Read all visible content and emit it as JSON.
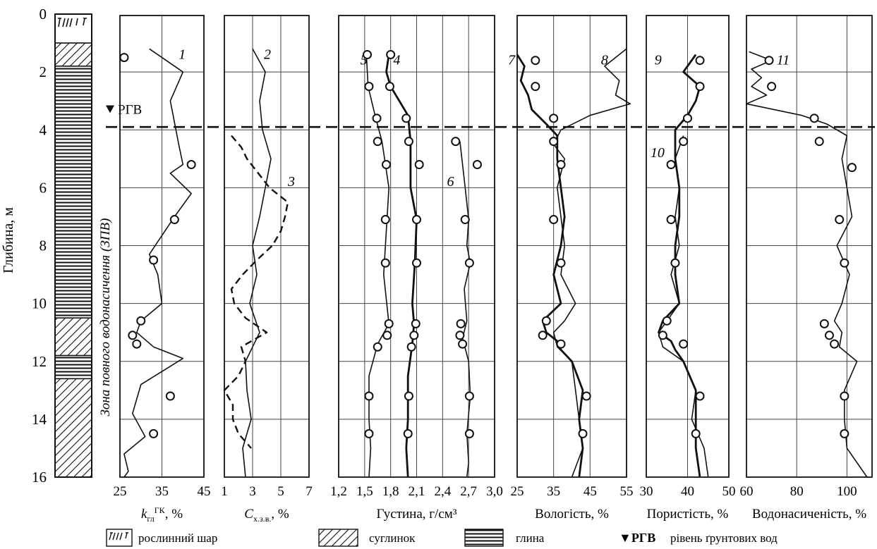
{
  "chart_data": {
    "type": "line",
    "y_axis": {
      "label": "Глибина, м",
      "ticks": [
        "0",
        "2",
        "4",
        "6",
        "8",
        "10",
        "12",
        "14",
        "16"
      ],
      "range": [
        0,
        16
      ]
    },
    "water_table": {
      "label": "РГВ",
      "depth": 3.9,
      "zone_label": "Зона повного водонасичення (ЗПВ)"
    },
    "lithology": [
      {
        "from": 0,
        "to": 1,
        "type": "soil"
      },
      {
        "from": 1,
        "to": 1.8,
        "type": "loam"
      },
      {
        "from": 1.8,
        "to": 10.5,
        "type": "clay"
      },
      {
        "from": 10.5,
        "to": 11.8,
        "type": "loam"
      },
      {
        "from": 11.8,
        "to": 12.6,
        "type": "clay"
      },
      {
        "from": 12.6,
        "to": 16,
        "type": "loam"
      }
    ],
    "panels": [
      {
        "xlabel_main": "k",
        "xlabel_sub": "гл",
        "xlabel_sup": "ГК",
        "xlabel_rest": ", %",
        "tick_labels": [
          "25",
          "35",
          "45"
        ],
        "tick_values": [
          25,
          35,
          45
        ],
        "xlim": [
          25,
          45
        ],
        "series": [
          {
            "label": "1",
            "label_at": [
              39,
              1.4
            ],
            "style": "solid",
            "depth": [
              1.2,
              2.0,
              3.0,
              4.5,
              5.2,
              5.5,
              6.2,
              7.0,
              8.3,
              9.0,
              10.0,
              10.6,
              11.0,
              11.5,
              11.9,
              12.8,
              13.8,
              14.6,
              15.2,
              15.8,
              16.0
            ],
            "values": [
              32,
              40,
              37,
              39,
              40,
              37,
              42,
              38,
              32,
              34,
              35,
              30,
              29,
              33,
              40,
              30,
              28,
              31,
              26,
              27,
              26
            ]
          },
          {
            "style": "markers",
            "depth": [
              1.5,
              5.2,
              7.1,
              8.5,
              10.6,
              11.1,
              11.4,
              13.2,
              14.5
            ],
            "values": [
              26,
              42,
              38,
              33,
              30,
              28,
              29,
              37,
              33
            ]
          }
        ]
      },
      {
        "xlabel_main": "C",
        "xlabel_sub": "х.з.в.",
        "xlabel_sup": "",
        "xlabel_rest": ", %",
        "tick_labels": [
          "1",
          "3",
          "5",
          "7"
        ],
        "tick_values": [
          1,
          3,
          5,
          7
        ],
        "xlim": [
          1,
          7
        ],
        "series": [
          {
            "label": "2",
            "label_at": [
              3.8,
              1.4
            ],
            "style": "solid",
            "depth": [
              1.2,
              2.0,
              3.0,
              4.0,
              5.0,
              6.0,
              7.0,
              8.0,
              9.0,
              10.0,
              11.0,
              12.0,
              13.0,
              14.0,
              15.0,
              16.0
            ],
            "values": [
              3.0,
              3.9,
              3.5,
              3.7,
              4.3,
              3.9,
              3.5,
              3.0,
              3.3,
              2.8,
              3.5,
              2.5,
              2.6,
              2.9,
              2.3,
              2.5
            ]
          },
          {
            "label": "3",
            "label_at": [
              5.5,
              5.8
            ],
            "style": "dashed",
            "depth": [
              4.2,
              4.6,
              5.0,
              5.5,
              6.0,
              6.5,
              7.0,
              7.5,
              8.0,
              8.5,
              9.0,
              9.5,
              10.0,
              10.5,
              11.0,
              11.5,
              12.0,
              12.5,
              13.0,
              13.5,
              14.0,
              14.5,
              15.0
            ],
            "values": [
              1.5,
              2.2,
              2.6,
              3.4,
              4.2,
              5.5,
              5.3,
              5.0,
              4.4,
              3.3,
              2.3,
              1.5,
              1.7,
              2.5,
              4.0,
              2.2,
              2.5,
              2.0,
              1.0,
              1.6,
              1.6,
              2.0,
              2.9
            ]
          }
        ]
      },
      {
        "xlabel_main": "Густина, г/см³",
        "xlabel_sub": "",
        "xlabel_sup": "",
        "xlabel_rest": "",
        "tick_labels": [
          "1,2",
          "1,5",
          "1,8",
          "2,1",
          "2,4",
          "2,7",
          "3,0"
        ],
        "tick_values": [
          1.2,
          1.5,
          1.8,
          2.1,
          2.4,
          2.7,
          3.0
        ],
        "xlim": [
          1.2,
          3.0
        ],
        "series": [
          {
            "label": "5",
            "label_at": [
              1.45,
              1.6
            ],
            "style": "solid",
            "depth": [
              1.4,
              2.5,
              3.5,
              4.4,
              6.0,
              7.5,
              9.0,
              10.7,
              11.4,
              12.5,
              14.0,
              15.0,
              16.0
            ],
            "values": [
              1.52,
              1.54,
              1.62,
              1.7,
              1.78,
              1.75,
              1.72,
              1.78,
              1.65,
              1.55,
              1.55,
              1.57,
              1.55
            ]
          },
          {
            "label": "4",
            "label_at": [
              1.83,
              1.6
            ],
            "style": "bold",
            "depth": [
              1.4,
              2.0,
              2.5,
              3.5,
              4.4,
              6.0,
              7.1,
              8.6,
              10.0,
              10.7,
              11.4,
              12.5,
              14.0,
              15.0,
              16.0
            ],
            "values": [
              1.78,
              1.75,
              1.8,
              2.0,
              2.03,
              2.03,
              2.1,
              2.08,
              2.05,
              2.07,
              2.05,
              2.0,
              2.0,
              1.98,
              2.0
            ]
          },
          {
            "label": "6",
            "label_at": [
              2.45,
              5.8
            ],
            "style": "solid",
            "depth": [
              4.4,
              5.2,
              6.0,
              7.1,
              8.0,
              8.6,
              9.5,
              10.6,
              11.2,
              12.0,
              13.2,
              14.5,
              15.5,
              16.0
            ],
            "values": [
              2.6,
              2.63,
              2.66,
              2.7,
              2.68,
              2.72,
              2.65,
              2.68,
              2.63,
              2.7,
              2.72,
              2.68,
              2.7,
              2.68
            ]
          },
          {
            "style": "markers",
            "depth": [
              1.4,
              2.5,
              3.6,
              4.4,
              5.2,
              7.1,
              8.6,
              10.7,
              11.1,
              11.5,
              13.2,
              14.5
            ],
            "values": [
              1.53,
              1.55,
              1.64,
              1.65,
              1.75,
              1.74,
              1.74,
              1.78,
              1.76,
              1.65,
              1.55,
              1.55
            ]
          },
          {
            "style": "markers",
            "depth": [
              1.4,
              2.5,
              3.6,
              4.4,
              5.2,
              7.1,
              8.6,
              10.7,
              11.1,
              11.5,
              13.2,
              14.5
            ],
            "values": [
              1.8,
              1.79,
              1.98,
              2.01,
              2.13,
              2.1,
              2.1,
              2.09,
              2.07,
              2.04,
              2.01,
              2.0
            ]
          },
          {
            "style": "markers",
            "depth": [
              4.4,
              5.2,
              7.1,
              8.6,
              10.7,
              11.1,
              11.4,
              13.2,
              14.5
            ],
            "values": [
              2.55,
              2.8,
              2.66,
              2.71,
              2.61,
              2.6,
              2.63,
              2.71,
              2.71
            ]
          }
        ]
      },
      {
        "xlabel_main": "Вологість, %",
        "xlabel_sub": "",
        "xlabel_sup": "",
        "xlabel_rest": "",
        "tick_labels": [
          "25",
          "35",
          "45",
          "55"
        ],
        "tick_values": [
          25,
          35,
          45,
          55
        ],
        "xlim": [
          25,
          55
        ],
        "series": [
          {
            "label": "7",
            "label_at": [
              22.5,
              1.6
            ],
            "style": "bold",
            "depth": [
              1.4,
              1.8,
              2.3,
              2.8,
              3.3,
              3.8,
              4.2,
              5.0,
              6.0,
              7.0,
              8.0,
              9.0,
              10.0,
              10.6,
              11.0,
              11.3,
              11.6,
              12.0,
              13.0,
              14.0,
              15.0,
              16.0
            ],
            "values": [
              25,
              27,
              26,
              28,
              29,
              33,
              36,
              36,
              37,
              38,
              37,
              35,
              37,
              32,
              33,
              36,
              37,
              40,
              43,
              42,
              43,
              42
            ]
          },
          {
            "label": "8",
            "label_at": [
              48,
              1.6
            ],
            "style": "solid",
            "depth": [
              1.2,
              1.8,
              2.3,
              2.8,
              3.1,
              3.5,
              4.0,
              4.5,
              5.0,
              6.0,
              7.0,
              8.0,
              9.0,
              10.0,
              10.6,
              11.0,
              11.5,
              12.0,
              13.0,
              14.0,
              15.0,
              16.0
            ],
            "values": [
              55,
              49,
              53,
              52,
              56,
              45,
              37,
              35,
              38,
              36,
              37,
              38,
              37,
              41,
              38,
              35,
              36,
              40,
              41,
              42,
              43,
              40
            ]
          },
          {
            "style": "markers",
            "depth": [
              1.6,
              2.5,
              3.6,
              4.4,
              5.2,
              7.1,
              8.6,
              10.6,
              11.1,
              11.4,
              13.2,
              14.5
            ],
            "values": [
              30,
              30,
              35,
              35,
              37,
              35,
              37,
              33,
              32,
              37,
              44,
              43
            ]
          }
        ]
      },
      {
        "xlabel_main": "Пористість, %",
        "xlabel_sub": "",
        "xlabel_sup": "",
        "xlabel_rest": "",
        "tick_labels": [
          "30",
          "40",
          "50"
        ],
        "tick_values": [
          30,
          40,
          50
        ],
        "xlim": [
          30,
          50
        ],
        "series": [
          {
            "label": "9",
            "label_at": [
              32,
              1.6
            ],
            "style": "bold",
            "depth": [
              1.4,
              2.0,
              2.5,
              3.0,
              3.5,
              4.0,
              5.0,
              6.0,
              7.0,
              8.0,
              9.0,
              10.0,
              10.6,
              11.0,
              11.3,
              11.6,
              12.0,
              13.0,
              14.0,
              15.0,
              16.0
            ],
            "values": [
              42,
              39,
              43,
              42,
              40,
              37,
              37,
              38,
              38,
              37,
              37,
              38,
              34,
              33,
              36,
              37,
              39,
              42,
              42,
              42,
              43
            ]
          },
          {
            "label": "10",
            "label_at": [
              31,
              4.8
            ],
            "style": "solid",
            "depth": [
              4.2,
              5.0,
              6.0,
              7.0,
              8.0,
              9.0,
              10.0,
              10.6,
              11.0,
              11.5,
              12.0,
              13.0,
              14.0,
              15.0,
              16.0
            ],
            "values": [
              39,
              37,
              38,
              37,
              38,
              36,
              38,
              35,
              33,
              34,
              39,
              42,
              41,
              44,
              45
            ]
          },
          {
            "style": "markers",
            "depth": [
              1.6,
              2.5,
              3.6,
              4.4,
              5.2,
              7.1,
              8.6,
              10.6,
              11.1,
              11.4,
              13.2,
              14.5
            ],
            "values": [
              43,
              43,
              40,
              39,
              36,
              36,
              37,
              35,
              34,
              39,
              43,
              42
            ]
          }
        ]
      },
      {
        "xlabel_main": "Водонасиченість, %",
        "xlabel_sub": "",
        "xlabel_sup": "",
        "xlabel_rest": "",
        "tick_labels": [
          "60",
          "80",
          "100"
        ],
        "tick_values": [
          60,
          80,
          100
        ],
        "xlim": [
          60,
          110
        ],
        "series": [
          {
            "label": "11",
            "label_at": [
              72,
              1.6
            ],
            "style": "solid",
            "depth": [
              1.3,
              1.6,
              1.9,
              2.2,
              2.5,
              2.8,
              3.1,
              3.5,
              3.8,
              4.2,
              5.0,
              6.0,
              7.0,
              8.0,
              9.0,
              10.0,
              10.6,
              11.0,
              11.5,
              12.0,
              13.0,
              14.0,
              15.0,
              16.0
            ],
            "values": [
              61,
              70,
              62,
              66,
              62,
              68,
              60,
              82,
              92,
              100,
              98,
              100,
              102,
              96,
              101,
              98,
              95,
              98,
              97,
              104,
              99,
              99,
              100,
              108
            ]
          },
          {
            "style": "markers",
            "depth": [
              1.6,
              2.5,
              3.6,
              4.4,
              5.3,
              7.1,
              8.6,
              10.7,
              11.1,
              11.4,
              13.2,
              14.5
            ],
            "values": [
              69,
              70,
              87,
              89,
              102,
              97,
              99,
              91,
              93,
              95,
              99,
              99
            ]
          }
        ]
      }
    ]
  },
  "legend": [
    {
      "type": "soil",
      "label": "рослинний шар"
    },
    {
      "type": "loam",
      "label": "суглинок"
    },
    {
      "type": "clay",
      "label": "глина"
    },
    {
      "type": "water",
      "symbol": "▼РГВ",
      "label": "рівень ґрунтових вод"
    }
  ]
}
